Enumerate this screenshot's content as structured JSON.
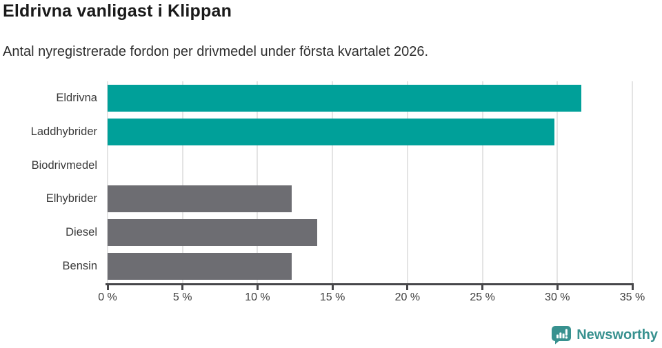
{
  "header": {
    "title": "Eldrivna vanligast i Klippan",
    "subtitle": "Antal nyregistrerade fordon per drivmedel under första kvartalet 2026."
  },
  "chart_data": {
    "type": "bar",
    "orientation": "horizontal",
    "title": "Eldrivna vanligast i Klippan",
    "subtitle": "Antal nyregistrerade fordon per drivmedel under första kvartalet 2026.",
    "categories": [
      "Eldrivna",
      "Laddhybrider",
      "Biodrivmedel",
      "Elhybrider",
      "Diesel",
      "Bensin"
    ],
    "values": [
      31.6,
      29.8,
      0,
      12.3,
      14.0,
      12.3
    ],
    "unit": "%",
    "bar_colors": [
      "#00a099",
      "#00a099",
      "#00a099",
      "#6d6d72",
      "#6d6d72",
      "#6d6d72"
    ],
    "xlabel": "",
    "ylabel": "",
    "xlim": [
      0,
      35
    ],
    "x_ticks": [
      0,
      5,
      10,
      15,
      20,
      25,
      30,
      35
    ],
    "x_tick_labels": [
      "0 %",
      "5 %",
      "10 %",
      "15 %",
      "20 %",
      "25 %",
      "30 %",
      "35 %"
    ],
    "grid": "vertical",
    "legend": "none"
  },
  "footer": {
    "brand": "Newsworthy",
    "logo_icon": "newsworthy-speech-bubble-chart-icon",
    "brand_color": "#38918f"
  },
  "colors": {
    "accent_teal": "#00a099",
    "neutral_gray": "#6d6d72",
    "gridline": "#e4e4e4",
    "axis": "#47474a",
    "brand": "#38918f"
  }
}
